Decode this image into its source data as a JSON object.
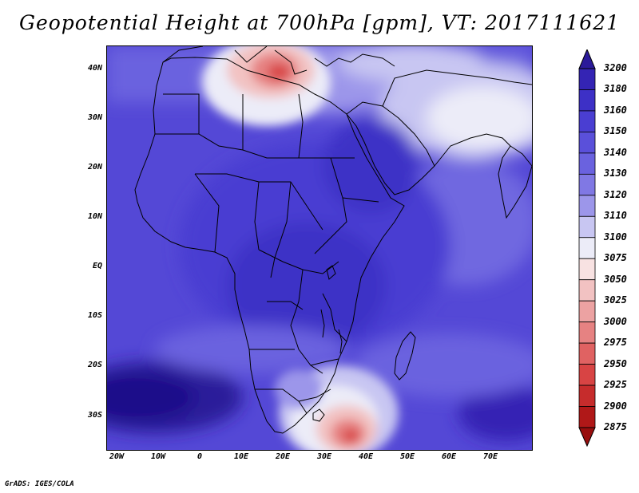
{
  "title": "Geopotential Height at 700hPa [gpm], VT: 2017111621",
  "credit": "GrADS: IGES/COLA",
  "axes": {
    "lat_labels": [
      "40N",
      "30N",
      "20N",
      "10N",
      "EQ",
      "10S",
      "20S",
      "30S"
    ],
    "lon_labels": [
      "20W",
      "10W",
      "0",
      "10E",
      "20E",
      "30E",
      "40E",
      "50E",
      "60E",
      "70E"
    ]
  },
  "colorbar": {
    "levels": [
      "3200",
      "3180",
      "3160",
      "3150",
      "3140",
      "3130",
      "3120",
      "3110",
      "3100",
      "3075",
      "3050",
      "3025",
      "3000",
      "2975",
      "2950",
      "2925",
      "2900",
      "2875"
    ],
    "colors": [
      "#2b1a9a",
      "#3424b4",
      "#3d30c6",
      "#4a3ed2",
      "#5a50da",
      "#6a62df",
      "#8078e4",
      "#9c96ea",
      "#c8c6f2",
      "#ececf8",
      "#f8e2e2",
      "#f2c2c2",
      "#eca2a2",
      "#e68282",
      "#e06262",
      "#d84444",
      "#c62c2c",
      "#b01818",
      "#980e0e"
    ]
  }
}
